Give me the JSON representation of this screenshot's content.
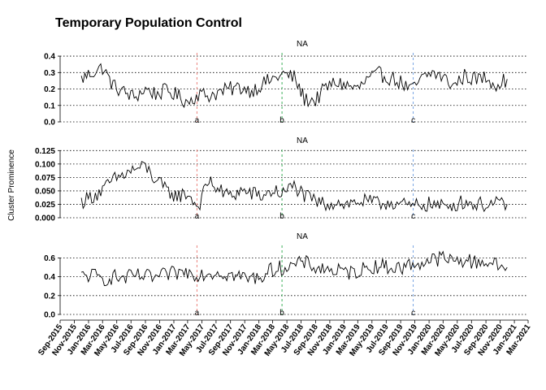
{
  "chart_data": {
    "type": "line",
    "title": "Temporary Population Control",
    "ylabel": "Cluster Prominence",
    "xlabel": "",
    "x_range": [
      "2015-09-01",
      "2021-03-01"
    ],
    "x_tick_labels": [
      "Sep-2015",
      "Nov-2015",
      "Jan-2016",
      "Mar-2016",
      "May-2016",
      "Jul-2016",
      "Sep-2016",
      "Nov-2016",
      "Jan-2017",
      "Mar-2017",
      "May-2017",
      "Jul-2017",
      "Sep-2017",
      "Nov-2017",
      "Jan-2018",
      "Mar-2018",
      "May-2018",
      "Jul-2018",
      "Sep-2018",
      "Nov-2018",
      "Jan-2019",
      "Mar-2019",
      "May-2019",
      "Jul-2019",
      "Sep-2019",
      "Nov-2019",
      "Jan-2020",
      "Mar-2020",
      "May-2020",
      "Jul-2020",
      "Sep-2020",
      "Nov-2020",
      "Jan-2021",
      "Mar-2021"
    ],
    "events": [
      {
        "label": "a",
        "date": "2017-04-10",
        "color": "#e8766f"
      },
      {
        "label": "b",
        "date": "2018-04-10",
        "color": "#2aa84a"
      },
      {
        "label": "c",
        "date": "2019-10-25",
        "color": "#6a9be0"
      }
    ],
    "grid": true,
    "panels": [
      {
        "facet_label": "NA",
        "ylim": [
          0,
          0.43
        ],
        "yticks": [
          0.0,
          0.1,
          0.2,
          0.3,
          0.4
        ],
        "ytick_labels": [
          "0.0",
          "0.1",
          "0.2",
          "0.3",
          "0.4"
        ],
        "series": [
          {
            "x": [
              "2015-12-01",
              "2016-01-15",
              "2016-03-01",
              "2016-04-15",
              "2016-06-01",
              "2016-07-15",
              "2016-09-01",
              "2016-10-15",
              "2016-12-01",
              "2017-01-15",
              "2017-03-01",
              "2017-04-15",
              "2017-06-01",
              "2017-07-15",
              "2017-09-01",
              "2017-10-15",
              "2017-12-01",
              "2018-01-15",
              "2018-03-01",
              "2018-04-15",
              "2018-06-01",
              "2018-07-15",
              "2018-09-01",
              "2018-10-15",
              "2018-12-01",
              "2019-01-15",
              "2019-03-01",
              "2019-04-15",
              "2019-06-01",
              "2019-07-15",
              "2019-09-01",
              "2019-10-15",
              "2019-12-01",
              "2020-01-15",
              "2020-03-01",
              "2020-04-15",
              "2020-06-01",
              "2020-07-15",
              "2020-09-01",
              "2020-10-15",
              "2020-12-01"
            ],
            "y": [
              0.26,
              0.3,
              0.33,
              0.22,
              0.18,
              0.15,
              0.2,
              0.17,
              0.19,
              0.16,
              0.12,
              0.17,
              0.16,
              0.18,
              0.2,
              0.21,
              0.19,
              0.23,
              0.26,
              0.29,
              0.27,
              0.14,
              0.13,
              0.21,
              0.24,
              0.22,
              0.2,
              0.26,
              0.29,
              0.27,
              0.24,
              0.19,
              0.26,
              0.3,
              0.27,
              0.22,
              0.28,
              0.26,
              0.27,
              0.23,
              0.26
            ]
          }
        ]
      },
      {
        "facet_label": "NA",
        "ylim": [
          0,
          0.13
        ],
        "yticks": [
          0.0,
          0.025,
          0.05,
          0.075,
          0.1,
          0.125
        ],
        "ytick_labels": [
          "0.000",
          "0.025",
          "0.050",
          "0.075",
          "0.100",
          "0.125"
        ],
        "series": [
          {
            "x": [
              "2015-12-01",
              "2016-01-15",
              "2016-03-01",
              "2016-04-15",
              "2016-06-01",
              "2016-07-15",
              "2016-09-01",
              "2016-10-15",
              "2016-12-01",
              "2017-01-15",
              "2017-03-01",
              "2017-04-15",
              "2017-06-01",
              "2017-07-15",
              "2017-09-01",
              "2017-10-15",
              "2017-12-01",
              "2018-01-15",
              "2018-03-01",
              "2018-04-15",
              "2018-06-01",
              "2018-07-15",
              "2018-09-01",
              "2018-10-15",
              "2018-12-01",
              "2019-01-15",
              "2019-03-01",
              "2019-04-15",
              "2019-06-01",
              "2019-07-15",
              "2019-09-01",
              "2019-10-15",
              "2019-12-01",
              "2020-01-15",
              "2020-03-01",
              "2020-04-15",
              "2020-06-01",
              "2020-07-15",
              "2020-09-01",
              "2020-10-15",
              "2020-12-01"
            ],
            "y": [
              0.03,
              0.04,
              0.05,
              0.07,
              0.08,
              0.09,
              0.095,
              0.07,
              0.05,
              0.04,
              0.045,
              0.02,
              0.07,
              0.05,
              0.04,
              0.05,
              0.045,
              0.04,
              0.05,
              0.045,
              0.06,
              0.04,
              0.03,
              0.025,
              0.03,
              0.025,
              0.03,
              0.03,
              0.025,
              0.03,
              0.025,
              0.02,
              0.025,
              0.025,
              0.02,
              0.025,
              0.03,
              0.025,
              0.025,
              0.025,
              0.025
            ]
          }
        ]
      },
      {
        "facet_label": "NA",
        "ylim": [
          0,
          0.75
        ],
        "yticks": [
          0.0,
          0.2,
          0.4,
          0.6
        ],
        "ytick_labels": [
          "0.0",
          "0.2",
          "0.4",
          "0.6"
        ],
        "series": [
          {
            "x": [
              "2015-12-01",
              "2016-01-15",
              "2016-03-01",
              "2016-04-15",
              "2016-06-01",
              "2016-07-15",
              "2016-09-01",
              "2016-10-15",
              "2016-12-01",
              "2017-01-15",
              "2017-03-01",
              "2017-04-15",
              "2017-06-01",
              "2017-07-15",
              "2017-09-01",
              "2017-10-15",
              "2017-12-01",
              "2018-01-15",
              "2018-03-01",
              "2018-04-15",
              "2018-06-01",
              "2018-07-15",
              "2018-09-01",
              "2018-10-15",
              "2018-12-01",
              "2019-01-15",
              "2019-03-01",
              "2019-04-15",
              "2019-06-01",
              "2019-07-15",
              "2019-09-01",
              "2019-10-15",
              "2019-12-01",
              "2020-01-15",
              "2020-03-01",
              "2020-04-15",
              "2020-06-01",
              "2020-07-15",
              "2020-09-01",
              "2020-10-15",
              "2020-12-01"
            ],
            "y": [
              0.4,
              0.42,
              0.37,
              0.4,
              0.38,
              0.41,
              0.4,
              0.39,
              0.42,
              0.44,
              0.45,
              0.43,
              0.44,
              0.45,
              0.42,
              0.4,
              0.38,
              0.41,
              0.48,
              0.5,
              0.52,
              0.55,
              0.5,
              0.48,
              0.46,
              0.44,
              0.46,
              0.5,
              0.52,
              0.5,
              0.49,
              0.53,
              0.55,
              0.58,
              0.6,
              0.56,
              0.58,
              0.55,
              0.57,
              0.52,
              0.5
            ]
          }
        ]
      }
    ]
  }
}
